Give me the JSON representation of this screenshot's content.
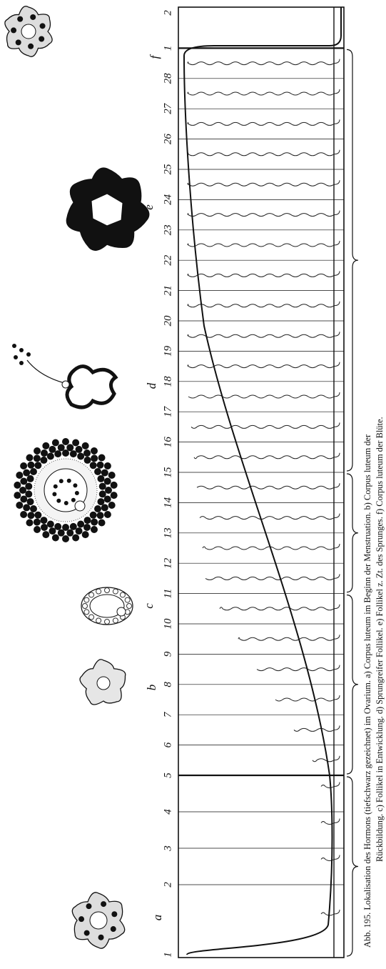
{
  "figure": {
    "day_labels": [
      1,
      2,
      3,
      4,
      5,
      6,
      7,
      8,
      9,
      10,
      11,
      12,
      13,
      14,
      15,
      16,
      17,
      18,
      19,
      20,
      21,
      22,
      23,
      24,
      25,
      26,
      27,
      28,
      1,
      2
    ],
    "cell_labels": [
      "a",
      "b",
      "c",
      "d",
      "e",
      "f"
    ],
    "caption": [
      "Abb. 195.  Lokalisation des Hormons (tiefschwarz gezeichnet) im Ovarium.  a) Corpus luteum im Beginn der Menstruation.  b) Corpus luteum der",
      "Rückbildung.  c) Follikel in Entwicklung.  d) Sprungreifer Follikel.  e) Follikel z. Zt. des Sprunges.  f) Corpus luteum der Blüte."
    ]
  }
}
